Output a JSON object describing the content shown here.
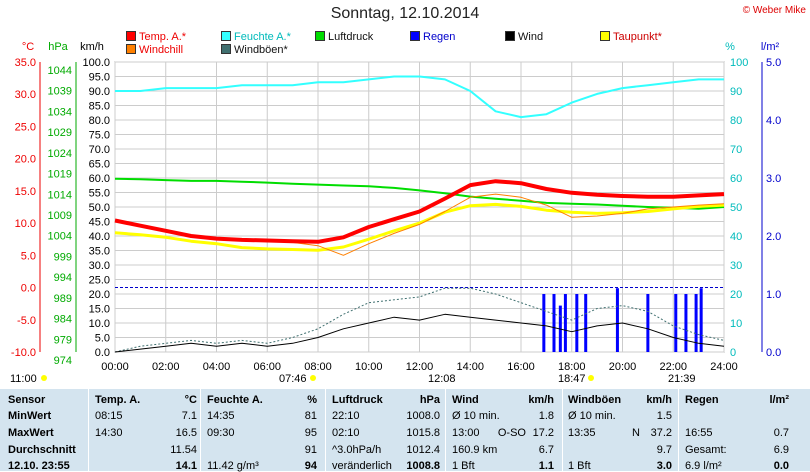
{
  "header": {
    "title": "Sonntag, 12.10.2014",
    "copyright": "© Weber Mike"
  },
  "legend": [
    {
      "label": "Temp. A.*",
      "color": "#ff0000"
    },
    {
      "label": "Feuchte A.*",
      "color": "#33ffff"
    },
    {
      "label": "Luftdruck",
      "color": "#00dd00"
    },
    {
      "label": "Regen",
      "color": "#0000ff"
    },
    {
      "label": "Wind",
      "color": "#000000"
    },
    {
      "label": "Taupunkt*",
      "color": "#ffff00"
    },
    {
      "label": "Windchill",
      "color": "#ff8000"
    },
    {
      "label": "Windböen*",
      "color": "#407070"
    }
  ],
  "axes": {
    "temp_unit": "°C",
    "press_unit": "hPa",
    "wind_unit": "km/h",
    "hum_unit": "%",
    "rain_unit": "l/m²",
    "temp_ticks": [
      "35.0",
      "30.0",
      "25.0",
      "20.0",
      "15.0",
      "10.0",
      "5.0",
      "0.0",
      "-5.0",
      "-10.0"
    ],
    "press_ticks": [
      "1044",
      "1039",
      "1034",
      "1029",
      "1024",
      "1019",
      "1014",
      "1009",
      "1004",
      "999",
      "994",
      "989",
      "984",
      "979",
      "974"
    ],
    "wind_ticks": [
      "100.0",
      "95.0",
      "90.0",
      "85.0",
      "80.0",
      "75.0",
      "70.0",
      "65.0",
      "60.0",
      "55.0",
      "50.0",
      "45.0",
      "40.0",
      "35.0",
      "30.0",
      "25.0",
      "20.0",
      "15.0",
      "10.0",
      "5.0",
      "0.0"
    ],
    "hum_ticks": [
      "100",
      "90",
      "80",
      "70",
      "60",
      "50",
      "40",
      "30",
      "20",
      "10",
      "0"
    ],
    "rain_ticks": [
      "5.0",
      "4.0",
      "3.0",
      "2.0",
      "1.0",
      "0.0"
    ],
    "time_ticks": [
      "00:00",
      "02:00",
      "04:00",
      "06:00",
      "08:00",
      "10:00",
      "12:00",
      "14:00",
      "16:00",
      "18:00",
      "20:00",
      "22:00",
      "24:00"
    ]
  },
  "sun_moon": {
    "moonset": "11:00",
    "sunrise": "07:46",
    "moonrise_mark": "12:08",
    "sunset": "18:47",
    "moon_mark": "21:39"
  },
  "chart_data": {
    "type": "line",
    "x_unit": "hours",
    "x": [
      0,
      1,
      2,
      3,
      4,
      5,
      6,
      7,
      8,
      9,
      10,
      11,
      12,
      13,
      14,
      15,
      16,
      17,
      18,
      19,
      20,
      21,
      22,
      23,
      24
    ],
    "series": [
      {
        "name": "Temp. A.*",
        "axis": "temp",
        "values": [
          10.4,
          9.6,
          8.8,
          8.0,
          7.6,
          7.4,
          7.3,
          7.2,
          7.1,
          7.8,
          9.4,
          10.6,
          11.8,
          13.8,
          15.9,
          16.5,
          16.2,
          15.3,
          14.7,
          14.4,
          14.2,
          14.1,
          14.1,
          14.3,
          14.5
        ]
      },
      {
        "name": "Feuchte A.*",
        "axis": "hum",
        "values": [
          90,
          90,
          91,
          91,
          91,
          92,
          92,
          92,
          93,
          93,
          94,
          95,
          95,
          94,
          90,
          83,
          81,
          82,
          86,
          89,
          91,
          92,
          93,
          94,
          94
        ]
      },
      {
        "name": "Luftdruck",
        "axis": "press",
        "values": [
          1015.8,
          1015.7,
          1015.5,
          1015.3,
          1015.3,
          1015.1,
          1014.9,
          1014.6,
          1014.4,
          1014.2,
          1014.0,
          1013.6,
          1013.0,
          1012.3,
          1011.5,
          1011.0,
          1010.5,
          1010.0,
          1009.8,
          1009.6,
          1009.3,
          1009.0,
          1008.8,
          1008.6,
          1009.0
        ]
      },
      {
        "name": "Taupunkt*",
        "axis": "temp",
        "values": [
          8.5,
          8.2,
          7.8,
          7.2,
          6.8,
          6.2,
          6.0,
          5.9,
          5.8,
          6.3,
          7.5,
          8.8,
          10.0,
          11.7,
          12.7,
          12.9,
          12.6,
          12.0,
          11.7,
          11.5,
          11.6,
          11.8,
          12.2,
          12.6,
          12.8
        ]
      },
      {
        "name": "Windchill",
        "axis": "temp",
        "values": [
          10.4,
          9.6,
          8.8,
          8.0,
          7.6,
          7.4,
          7.3,
          7.0,
          6.5,
          5.0,
          6.8,
          8.4,
          9.8,
          11.8,
          14.0,
          14.5,
          14.0,
          12.8,
          10.9,
          11.1,
          11.5,
          12.2,
          12.5,
          12.8,
          13.0
        ]
      },
      {
        "name": "Wind",
        "axis": "wind",
        "values": [
          0,
          1,
          2,
          3,
          2,
          3,
          2,
          3,
          5,
          8,
          10,
          12,
          11,
          13,
          12,
          11,
          10,
          9,
          7,
          9,
          10,
          8,
          5,
          3,
          2
        ]
      },
      {
        "name": "Windböen*",
        "axis": "wind",
        "values": [
          0,
          2,
          3,
          4,
          3,
          4,
          3,
          5,
          8,
          13,
          17,
          18,
          19,
          22,
          22,
          20,
          17,
          14,
          11,
          15,
          16,
          14,
          9,
          6,
          4
        ]
      }
    ],
    "rain_bars": {
      "name": "Regen",
      "axis": "rain",
      "x": [
        16.9,
        17.3,
        17.55,
        17.75,
        18.2,
        18.55,
        19.8,
        21.0,
        22.1,
        22.5,
        22.9,
        23.1
      ],
      "values": [
        1.0,
        1.0,
        0.8,
        1.0,
        1.0,
        1.0,
        1.1,
        1.0,
        1.0,
        1.0,
        1.0,
        1.1
      ]
    },
    "ylim_temp": [
      -10,
      35
    ],
    "ylim_press": [
      974,
      1044
    ],
    "ylim_wind": [
      0,
      100
    ],
    "ylim_hum": [
      0,
      100
    ],
    "ylim_rain": [
      0,
      5
    ],
    "frost_line": 0,
    "grid": true
  },
  "stats": {
    "headers": {
      "sensor": "Sensor",
      "temp": "Temp. A.",
      "temp_unit": "°C",
      "hum": "Feuchte A.",
      "hum_unit": "%",
      "press": "Luftdruck",
      "press_unit": "hPa",
      "wind": "Wind",
      "wind_unit": "km/h",
      "gust": "Windböen",
      "gust_unit": "km/h",
      "rain": "Regen",
      "rain_unit": "l/m²"
    },
    "row_labels": [
      "MinWert",
      "MaxWert",
      "Durchschnitt",
      "12.10. 23:55"
    ],
    "temp": [
      [
        "08:15",
        "7.1"
      ],
      [
        "14:30",
        "16.5"
      ],
      [
        "",
        "11.54"
      ],
      [
        "",
        "14.1"
      ]
    ],
    "hum": [
      [
        "14:35",
        "81"
      ],
      [
        "09:30",
        "95"
      ],
      [
        "",
        "91"
      ],
      [
        "11.42 g/m³",
        "94"
      ]
    ],
    "press": [
      [
        "22:10",
        "1008.0"
      ],
      [
        "02:10",
        "1015.8"
      ],
      [
        "^3.0hPa/h",
        "1012.4"
      ],
      [
        "veränderlich",
        "1008.8"
      ]
    ],
    "wind": [
      [
        "Ø 10 min.",
        "",
        "1.8"
      ],
      [
        "13:00",
        "O-SO",
        "17.2"
      ],
      [
        "160.9 km",
        "",
        "6.7"
      ],
      [
        "1 Bft",
        "",
        "1.1"
      ]
    ],
    "gust": [
      [
        "Ø 10 min.",
        "",
        "1.5"
      ],
      [
        "13:35",
        "N",
        "37.2"
      ],
      [
        "",
        "",
        "9.7"
      ],
      [
        "1 Bft",
        "",
        "3.0"
      ]
    ],
    "rain": [
      [
        "",
        "",
        ""
      ],
      [
        "16:55",
        "",
        "0.7"
      ],
      [
        "Gesamt:",
        "",
        "6.9"
      ],
      [
        "6.9 l/m²",
        "",
        "0.0"
      ]
    ]
  }
}
